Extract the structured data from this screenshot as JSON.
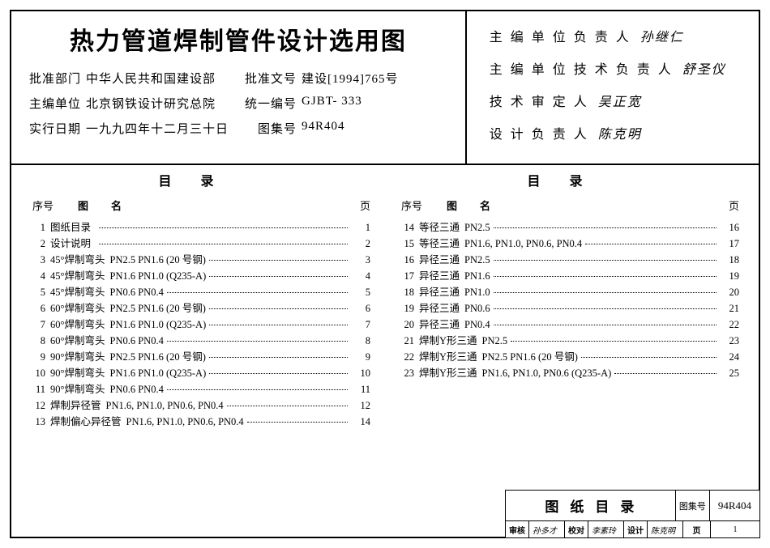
{
  "header": {
    "title": "热力管道焊制管件设计选用图",
    "rows": [
      [
        {
          "label": "批准部门",
          "value": "中华人民共和国建设部"
        },
        {
          "label": "批准文号",
          "value": "建设[1994]765号"
        }
      ],
      [
        {
          "label": "主编单位",
          "value": "北京钢铁设计研究总院"
        },
        {
          "label": "统一编号",
          "value": "GJBT- 333"
        }
      ],
      [
        {
          "label": "实行日期",
          "value": "一九九四年十二月三十日"
        },
        {
          "label": "图集号",
          "value": "94R404"
        }
      ]
    ]
  },
  "responsibles": [
    {
      "label": "主编单位负责人",
      "name": "孙继仁"
    },
    {
      "label": "主编单位技术负责人",
      "name": "舒圣仪"
    },
    {
      "label": "技术审定人",
      "name": "吴正宽"
    },
    {
      "label": "设计负责人",
      "name": "陈克明"
    }
  ],
  "toc": {
    "heading": "目录",
    "seq_header": "序号",
    "name_header": "图名",
    "page_header": "页",
    "left": [
      {
        "seq": "1",
        "name": "图纸目录",
        "spec": "",
        "page": "1"
      },
      {
        "seq": "2",
        "name": "设计说明",
        "spec": "",
        "page": "2"
      },
      {
        "seq": "3",
        "name": "45°焊制弯头",
        "spec": "PN2.5 PN1.6 (20 号钢)",
        "page": "3"
      },
      {
        "seq": "4",
        "name": "45°焊制弯头",
        "spec": "PN1.6 PN1.0 (Q235-A)",
        "page": "4"
      },
      {
        "seq": "5",
        "name": "45°焊制弯头",
        "spec": "PN0.6 PN0.4",
        "page": "5"
      },
      {
        "seq": "6",
        "name": "60°焊制弯头",
        "spec": "PN2.5 PN1.6 (20 号钢)",
        "page": "6"
      },
      {
        "seq": "7",
        "name": "60°焊制弯头",
        "spec": "PN1.6 PN1.0 (Q235-A)",
        "page": "7"
      },
      {
        "seq": "8",
        "name": "60°焊制弯头",
        "spec": "PN0.6 PN0.4",
        "page": "8"
      },
      {
        "seq": "9",
        "name": "90°焊制弯头",
        "spec": "PN2.5 PN1.6 (20 号钢)",
        "page": "9"
      },
      {
        "seq": "10",
        "name": "90°焊制弯头",
        "spec": "PN1.6 PN1.0 (Q235-A)",
        "page": "10"
      },
      {
        "seq": "11",
        "name": "90°焊制弯头",
        "spec": "PN0.6 PN0.4",
        "page": "11"
      },
      {
        "seq": "12",
        "name": "焊制异径管",
        "spec": "PN1.6, PN1.0, PN0.6, PN0.4",
        "page": "12"
      },
      {
        "seq": "13",
        "name": "焊制偏心异径管",
        "spec": "PN1.6, PN1.0, PN0.6, PN0.4",
        "page": "14"
      }
    ],
    "right": [
      {
        "seq": "14",
        "name": "等径三通",
        "spec": "PN2.5",
        "page": "16"
      },
      {
        "seq": "15",
        "name": "等径三通",
        "spec": "PN1.6, PN1.0, PN0.6, PN0.4",
        "page": "17"
      },
      {
        "seq": "16",
        "name": "异径三通",
        "spec": "PN2.5",
        "page": "18"
      },
      {
        "seq": "17",
        "name": "异径三通",
        "spec": "PN1.6",
        "page": "19"
      },
      {
        "seq": "18",
        "name": "异径三通",
        "spec": "PN1.0",
        "page": "20"
      },
      {
        "seq": "19",
        "name": "异径三通",
        "spec": "PN0.6",
        "page": "21"
      },
      {
        "seq": "20",
        "name": "异径三通",
        "spec": "PN0.4",
        "page": "22"
      },
      {
        "seq": "21",
        "name": "焊制Y形三通",
        "spec": "PN2.5",
        "page": "23"
      },
      {
        "seq": "22",
        "name": "焊制Y形三通",
        "spec": "PN2.5 PN1.6  (20 号钢)",
        "page": "24"
      },
      {
        "seq": "23",
        "name": "焊制Y形三通",
        "spec": "PN1.6, PN1.0, PN0.6 (Q235-A)",
        "page": "25"
      }
    ]
  },
  "footer": {
    "title": "图纸目录",
    "set_label": "图集号",
    "set_val": "94R404",
    "cells": [
      {
        "label": "审核",
        "val": "孙多才"
      },
      {
        "label": "校对",
        "val": "李素玲"
      },
      {
        "label": "设计",
        "val": "陈克明"
      }
    ],
    "page_label": "页",
    "page_val": "1"
  }
}
